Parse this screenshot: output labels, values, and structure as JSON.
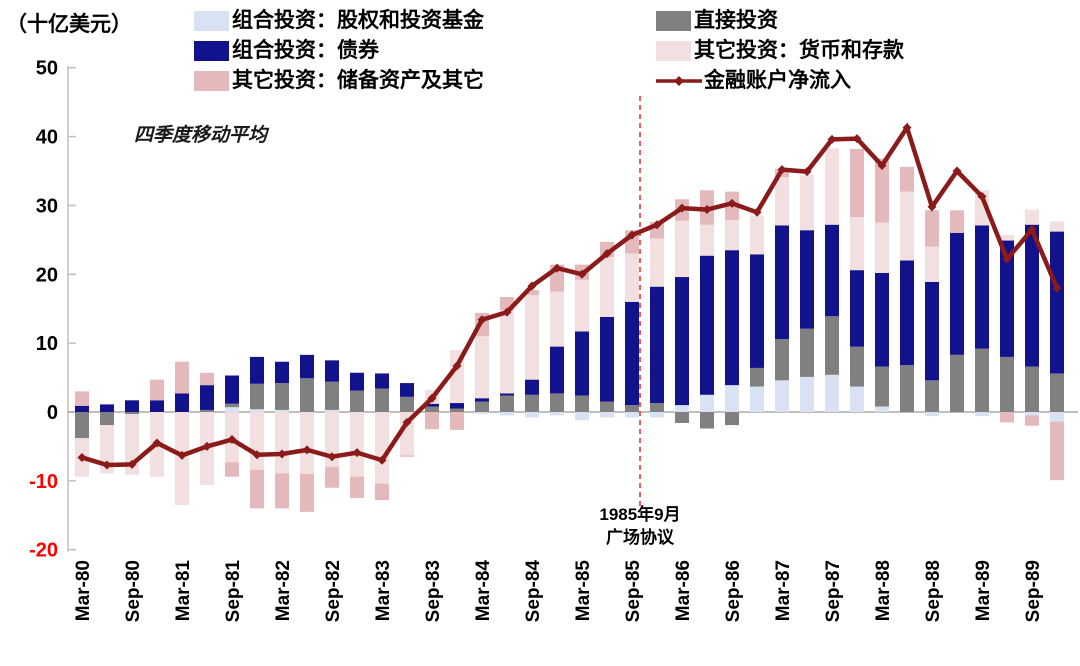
{
  "unit_label": "（十亿美元）",
  "moving_average_note": "四季度移动平均",
  "annotation": {
    "date_line": "1985年9月",
    "event_line": "广场协议",
    "at_category": "Sep-85"
  },
  "colors": {
    "equity": "#d9e2f3",
    "direct": "#808080",
    "bonds": "#12128c",
    "deposits": "#f2dfe0",
    "reserve": "#e4b9bc",
    "net_line": "#8b1a1a",
    "dashed_event_line": "#ff2020",
    "axis": "#bfbfbf",
    "zero_line": "#a8a8a8",
    "negative_tick_text": "#ff0000",
    "tick_text": "#000000"
  },
  "legend": {
    "columns": [
      [
        0,
        2,
        4
      ],
      [
        1,
        3,
        5
      ]
    ]
  },
  "chart_data": {
    "type": "bar",
    "stacked": true,
    "line_overlay": true,
    "title": "",
    "xlabel": "",
    "ylabel": "（十亿美元）",
    "ylim": [
      -20,
      50
    ],
    "yticks": [
      50,
      40,
      30,
      20,
      10,
      0,
      -10,
      -20
    ],
    "grid": "zero-line-only",
    "legend_position": "top",
    "x_tick_every": 2,
    "categories": [
      "Mar-80",
      "Jun-80",
      "Sep-80",
      "Dec-80",
      "Mar-81",
      "Jun-81",
      "Sep-81",
      "Dec-81",
      "Mar-82",
      "Jun-82",
      "Sep-82",
      "Dec-82",
      "Mar-83",
      "Jun-83",
      "Sep-83",
      "Dec-83",
      "Mar-84",
      "Jun-84",
      "Sep-84",
      "Dec-84",
      "Mar-85",
      "Jun-85",
      "Sep-85",
      "Dec-85",
      "Mar-86",
      "Jun-86",
      "Sep-86",
      "Dec-86",
      "Mar-87",
      "Jun-87",
      "Sep-87",
      "Dec-87",
      "Mar-88",
      "Jun-88",
      "Sep-88",
      "Dec-88",
      "Mar-89",
      "Jun-89",
      "Sep-89",
      "Dec-89"
    ],
    "series": [
      {
        "key": "portfolio-equity",
        "name": "组合投资：股权和投资基金",
        "type": "bar",
        "color": "#d9e2f3",
        "values": [
          0,
          0,
          0,
          0,
          0,
          0,
          0.7,
          0.4,
          0.3,
          0,
          0.3,
          0,
          0,
          0,
          0,
          0,
          -0.3,
          -0.5,
          -0.8,
          -0.5,
          -1.2,
          -0.8,
          -0.8,
          -0.8,
          1.0,
          2.5,
          3.9,
          3.7,
          4.6,
          5.1,
          5.4,
          3.7,
          0.8,
          0,
          -0.6,
          0,
          -0.6,
          0,
          -0.5,
          -1.4
        ]
      },
      {
        "key": "direct-investment",
        "name": "直接投资",
        "type": "bar",
        "color": "#808080",
        "values": [
          -3.8,
          -1.9,
          -0.3,
          0,
          0,
          0.3,
          0.5,
          3.7,
          3.9,
          4.9,
          4.1,
          3.1,
          3.4,
          2.2,
          0.8,
          0.5,
          1.5,
          2.4,
          2.5,
          2.7,
          2.4,
          1.5,
          1.0,
          1.3,
          -1.6,
          -2.4,
          -1.9,
          2.7,
          6.0,
          7.0,
          8.5,
          5.8,
          5.8,
          6.8,
          4.6,
          8.3,
          9.2,
          8.0,
          6.6,
          5.6
        ]
      },
      {
        "key": "portfolio-bonds",
        "name": "组合投资：债券",
        "type": "bar",
        "color": "#12128c",
        "values": [
          0.9,
          1.1,
          1.7,
          1.7,
          2.7,
          3.6,
          4.1,
          3.9,
          3.1,
          3.4,
          3.1,
          2.6,
          2.2,
          2.0,
          0.4,
          0.8,
          0.5,
          0.3,
          2.2,
          6.8,
          9.3,
          12.3,
          15.0,
          16.9,
          18.6,
          20.2,
          19.6,
          16.5,
          16.5,
          14.3,
          13.3,
          11.1,
          13.6,
          15.2,
          14.3,
          17.7,
          17.9,
          16.9,
          20.6,
          20.6
        ]
      },
      {
        "key": "other-currency-deposits",
        "name": "其它投资：货币和存款",
        "type": "bar",
        "color": "#f2dfe0",
        "values": [
          -5.6,
          -7.0,
          -8.8,
          -9.4,
          -13.5,
          -10.6,
          -7.3,
          -8.4,
          -8.9,
          -9.0,
          -8.0,
          -9.4,
          -10.4,
          -6.3,
          2.0,
          7.7,
          9.0,
          12.1,
          12.3,
          8.0,
          7.5,
          8.7,
          7.0,
          7.0,
          8.2,
          4.5,
          4.4,
          5.6,
          7.0,
          8.0,
          11.1,
          7.7,
          7.3,
          10.0,
          5.1,
          0,
          5.1,
          0.8,
          2.2,
          1.5
        ]
      },
      {
        "key": "other-reserve-assets",
        "name": "其它投资：储备资产及其它",
        "type": "bar",
        "color": "#e4b9bc",
        "values": [
          2.1,
          0,
          0,
          3.0,
          4.6,
          1.8,
          -2.1,
          -5.6,
          -5.1,
          -5.5,
          -3.0,
          -3.1,
          -2.4,
          -0.2,
          -2.5,
          -2.6,
          3.4,
          1.9,
          0.7,
          3.9,
          2.2,
          2.2,
          3.4,
          2.4,
          3.1,
          5.0,
          4.1,
          0,
          1.2,
          0,
          0,
          9.9,
          9.3,
          3.6,
          5.3,
          3.3,
          0,
          -1.5,
          -1.5,
          -8.5
        ]
      },
      {
        "key": "net-inflow",
        "name": "金融账户净流入",
        "type": "line",
        "color": "#8b1a1a",
        "values": [
          -6.6,
          -7.7,
          -7.6,
          -4.5,
          -6.3,
          -5.0,
          -4.0,
          -6.2,
          -6.1,
          -5.5,
          -6.5,
          -5.9,
          -7.0,
          -1.5,
          2.0,
          6.7,
          13.4,
          14.5,
          18.3,
          20.9,
          20.0,
          23.0,
          25.7,
          27.2,
          29.6,
          29.4,
          30.3,
          29.0,
          35.2,
          34.9,
          39.6,
          39.7,
          35.8,
          41.3,
          29.8,
          35.0,
          31.3,
          22.2,
          26.5,
          18.0
        ]
      }
    ]
  }
}
